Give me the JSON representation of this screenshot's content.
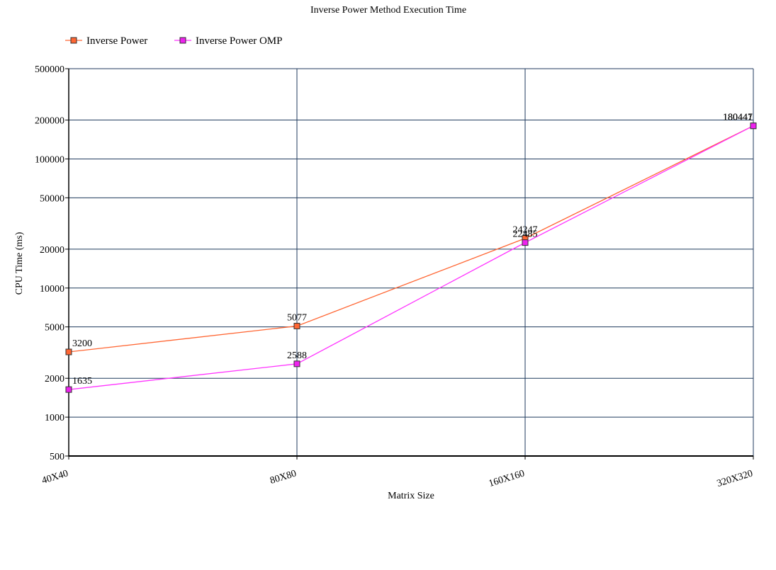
{
  "chart_data": {
    "type": "line",
    "title": "Inverse Power Method Execution Time",
    "xlabel": "Matrix Size",
    "ylabel": "CPU Time (ms)",
    "y_scale": "log",
    "ylim": [
      500,
      500000
    ],
    "y_ticks": [
      500,
      1000,
      2000,
      5000,
      10000,
      20000,
      50000,
      100000,
      200000,
      500000
    ],
    "categories": [
      "40X40",
      "80X80",
      "160X160",
      "320X320"
    ],
    "grid": true,
    "legend_position": "top-left",
    "series": [
      {
        "name": "Inverse Power",
        "color": "#ff6633",
        "marker_fill": "#ff6633",
        "values": [
          3200,
          5077,
          24247,
          180447
        ]
      },
      {
        "name": "Inverse Power OMP",
        "color": "#ff33ff",
        "marker_fill": "#ee22ee",
        "values": [
          1635,
          2588,
          22485,
          180441
        ]
      }
    ],
    "data_labels": [
      [
        "3200",
        "5077",
        "24247",
        "180447"
      ],
      [
        "1635",
        "2588",
        "22485",
        "180441"
      ]
    ]
  }
}
